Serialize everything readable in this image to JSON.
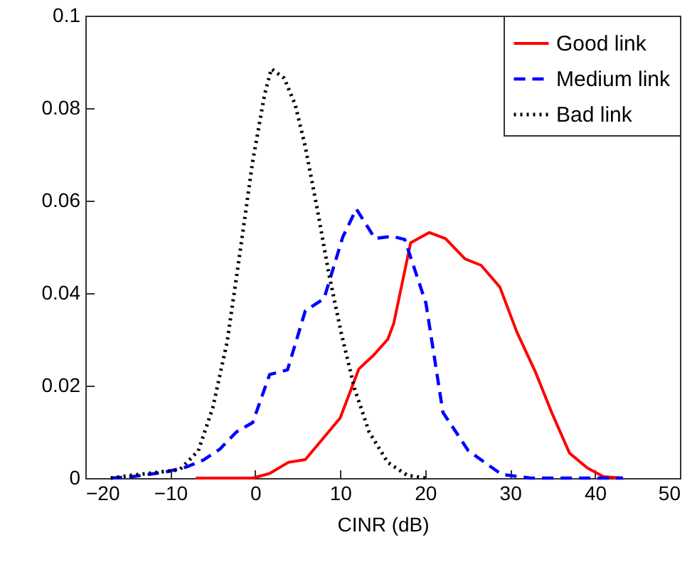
{
  "chart_data": {
    "type": "line",
    "xlabel": "CINR (dB)",
    "xlim": [
      -20,
      50
    ],
    "xticks": [
      -20,
      -10,
      0,
      10,
      20,
      30,
      40,
      50
    ],
    "ylim": [
      0,
      0.1
    ],
    "yticks": [
      0,
      0.02,
      0.04,
      0.06,
      0.08,
      0.1
    ],
    "grid": false,
    "legend": "top right",
    "marker": "none",
    "series": [
      {
        "name": "Good link",
        "color": "#ff0000",
        "line_style": "solid",
        "x": [
          -7,
          -0.3,
          1.7,
          3.9,
          5.9,
          10,
          12.2,
          14,
          15.6,
          16.3,
          18.3,
          20.5,
          22.4,
          24.7,
          26.6,
          28.8,
          30.8,
          33,
          34.9,
          37,
          39.1,
          41,
          43.3
        ],
        "values": [
          0,
          0,
          0.001,
          0.0034,
          0.004,
          0.013,
          0.0236,
          0.0267,
          0.03,
          0.0334,
          0.0509,
          0.0531,
          0.0518,
          0.0474,
          0.046,
          0.0413,
          0.0316,
          0.0229,
          0.0142,
          0.0054,
          0.0022,
          0.0003,
          0
        ]
      },
      {
        "name": "Medium link",
        "color": "#0000ff",
        "line_style": "dashed",
        "x": [
          -17,
          -14.5,
          -10.6,
          -8.1,
          -6.1,
          -4.2,
          -2.2,
          -0.3,
          1.7,
          3.8,
          5.9,
          8.1,
          10.3,
          11.9,
          14.1,
          16.1,
          17.6,
          20.1,
          22.1,
          25.1,
          29,
          32.4,
          43.3
        ],
        "values": [
          0,
          0.0003,
          0.0013,
          0.0024,
          0.0039,
          0.0062,
          0.01,
          0.012,
          0.0224,
          0.0234,
          0.0362,
          0.0388,
          0.0521,
          0.0582,
          0.0518,
          0.0523,
          0.0516,
          0.0378,
          0.0142,
          0.0059,
          0.0008,
          0,
          0
        ]
      },
      {
        "name": "Bad link",
        "color": "#000000",
        "line_style": "dotted",
        "x": [
          -17,
          -14.6,
          -8.9,
          -6.7,
          -5,
          -3.3,
          -1.7,
          -0.3,
          1.1,
          1.9,
          3.4,
          4.7,
          5.9,
          7.3,
          8.7,
          10.1,
          11.7,
          13.4,
          15.6,
          17.9,
          20.1
        ],
        "values": [
          0,
          0.0006,
          0.0018,
          0.0059,
          0.0152,
          0.0295,
          0.05,
          0.0685,
          0.0829,
          0.0885,
          0.0865,
          0.0808,
          0.0716,
          0.0582,
          0.0439,
          0.0316,
          0.0193,
          0.01,
          0.0034,
          0.0006,
          0
        ]
      }
    ]
  }
}
